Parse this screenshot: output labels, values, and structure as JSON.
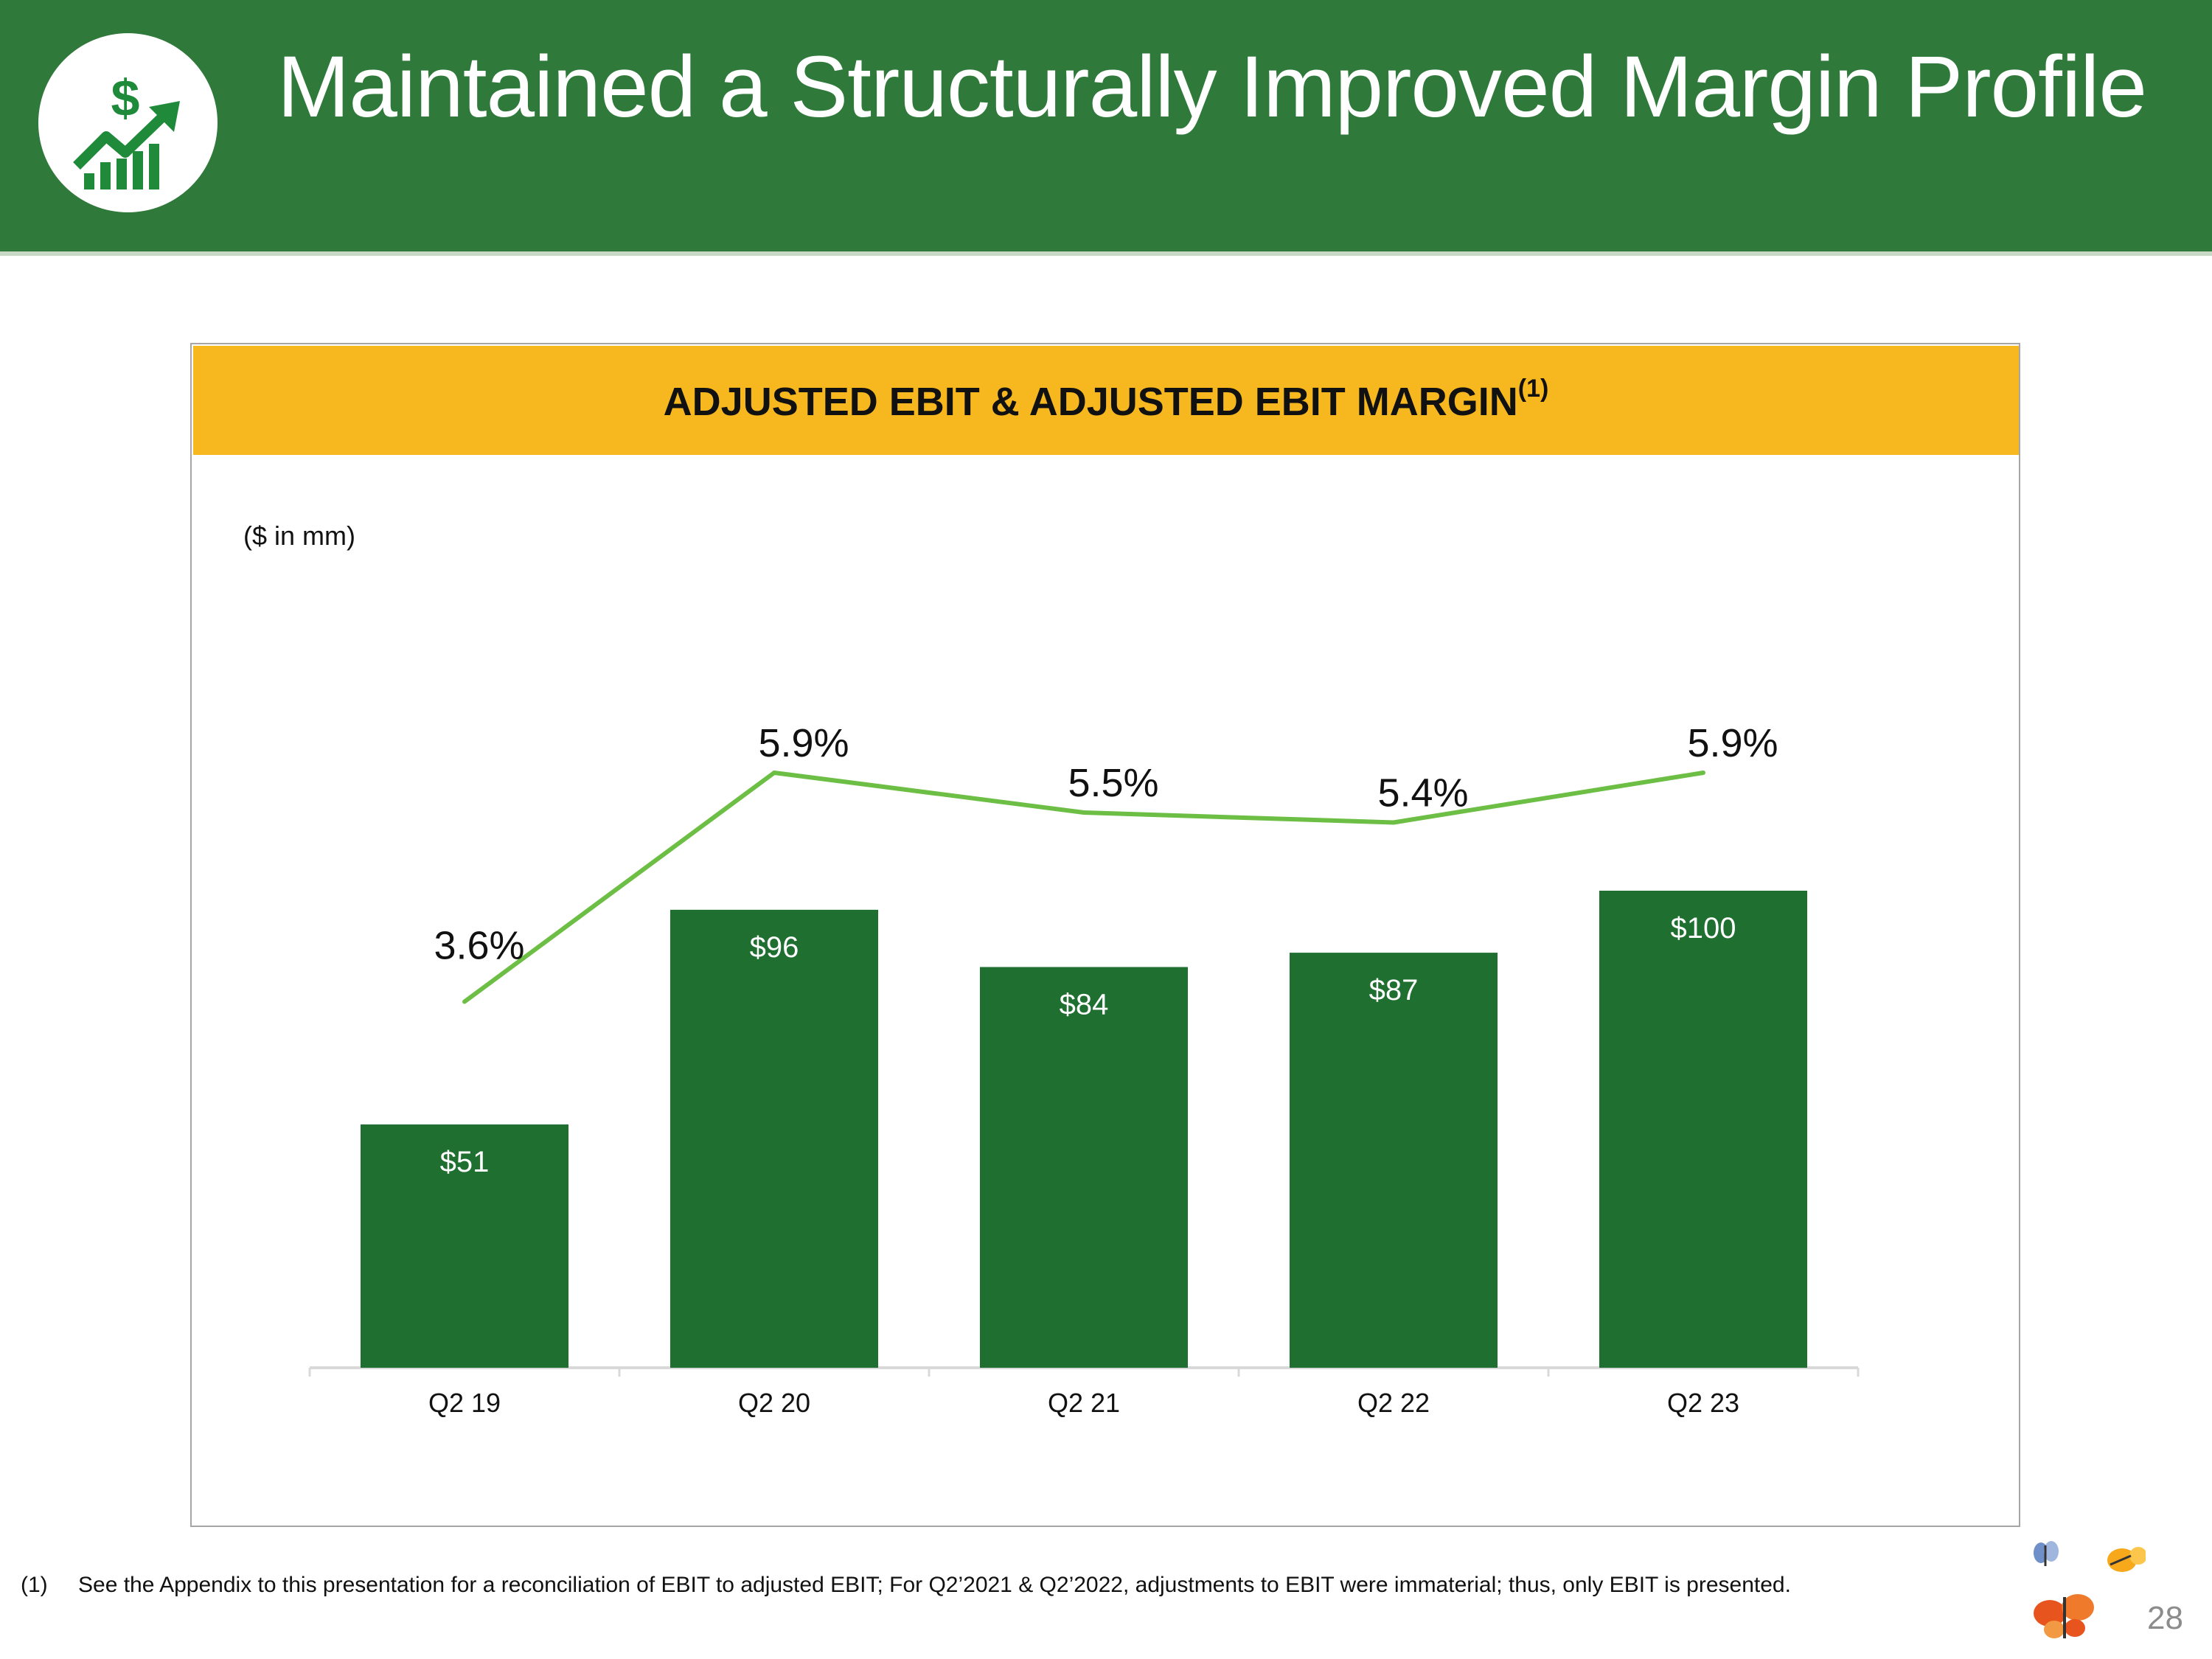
{
  "header": {
    "title": "Maintained a Structurally Improved Margin Profile",
    "logo_icon": "growth-chart-dollar-icon"
  },
  "panel": {
    "title": "ADJUSTED EBIT & ADJUSTED EBIT MARGIN",
    "title_superscript": "(1)",
    "units": "($ in mm)"
  },
  "chart_data": {
    "type": "bar",
    "title": "ADJUSTED EBIT & ADJUSTED EBIT MARGIN",
    "categories": [
      "Q2 19",
      "Q2 20",
      "Q2 21",
      "Q2 22",
      "Q2 23"
    ],
    "series": [
      {
        "name": "Adjusted EBIT",
        "type": "bar",
        "values": [
          51,
          96,
          84,
          87,
          100
        ],
        "labels": [
          "$51",
          "$96",
          "$84",
          "$87",
          "$100"
        ],
        "color": "#1e6f30"
      },
      {
        "name": "Adjusted EBIT Margin",
        "type": "line",
        "values": [
          3.6,
          5.9,
          5.5,
          5.4,
          5.9
        ],
        "labels": [
          "3.6%",
          "5.9%",
          "5.5%",
          "5.4%",
          "5.9%"
        ],
        "color": "#6cbf44"
      }
    ],
    "xlabel": "",
    "ylabel": "",
    "ylim": [
      0,
      100
    ],
    "grid": false,
    "legend": "none"
  },
  "footnote": {
    "number": "(1)",
    "text": "See the Appendix to this presentation for a reconciliation of EBIT to adjusted EBIT;  For Q2’2021 & Q2’2022, adjustments to EBIT were immaterial; thus, only EBIT is presented."
  },
  "page_number": "28",
  "brand_icon": "butterflies-logo-icon",
  "colors": {
    "header_green": "#2f793a",
    "panel_yellow": "#f6b81e",
    "bar_green": "#1e6f30",
    "line_green": "#6cbf44"
  }
}
